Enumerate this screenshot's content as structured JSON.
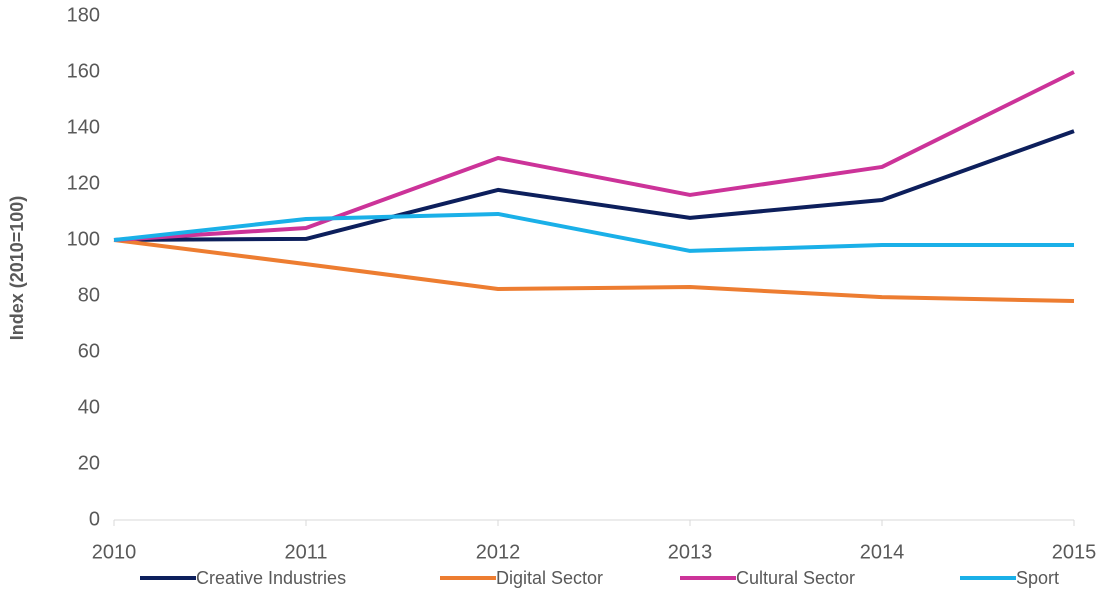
{
  "chart_data": {
    "type": "line",
    "y_label": "Index (2010=100)",
    "categories": [
      "2010",
      "2011",
      "2012",
      "2013",
      "2014",
      "2015"
    ],
    "series": [
      {
        "name": "Creative Industries",
        "color": "#0d1f5c",
        "values": [
          100,
          100.4,
          117.9,
          107.9,
          114.3,
          138.9
        ]
      },
      {
        "name": "Digital Sector",
        "color": "#ed7d31",
        "values": [
          100,
          91.4,
          82.5,
          83.2,
          79.6,
          78.2
        ]
      },
      {
        "name": "Cultural Sector",
        "color": "#cc3399",
        "values": [
          100,
          104.3,
          129.3,
          116.1,
          126.1,
          160
        ]
      },
      {
        "name": "Sport",
        "color": "#1ab0e8",
        "values": [
          100,
          107.5,
          109.3,
          96.1,
          98.2,
          98.2
        ]
      }
    ],
    "ylim": [
      0,
      180
    ],
    "yticks": [
      0,
      20,
      40,
      60,
      80,
      100,
      120,
      140,
      160,
      180
    ],
    "grid": false,
    "legend": "bottom"
  }
}
